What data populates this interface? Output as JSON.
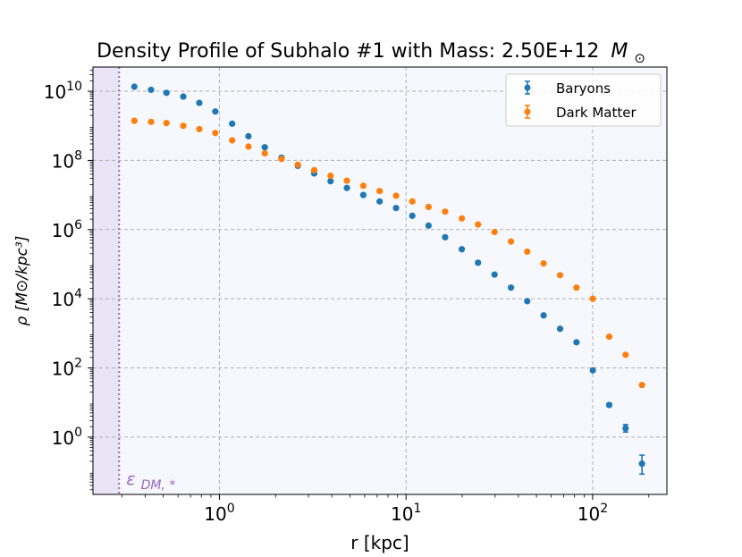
{
  "chart_data": {
    "type": "scatter",
    "title": "Density Profile of Subhalo #1 with Mass: 2.50E+12",
    "title_unit": "M",
    "title_unit_sub": "⊙",
    "xlabel": "r [kpc]",
    "ylabel": "ρ [M⊙/kpc³]",
    "xscale": "log",
    "yscale": "log",
    "xlim": [
      0.21,
      250
    ],
    "ylim": [
      0.022,
      50000000000.0
    ],
    "x_ticks": [
      {
        "value": 1,
        "base": "10",
        "exp": "0"
      },
      {
        "value": 10,
        "base": "10",
        "exp": "1"
      },
      {
        "value": 100,
        "base": "10",
        "exp": "2"
      }
    ],
    "y_ticks": [
      {
        "value": 1,
        "base": "10",
        "exp": "0"
      },
      {
        "value": 100,
        "base": "10",
        "exp": "2"
      },
      {
        "value": 10000,
        "base": "10",
        "exp": "4"
      },
      {
        "value": 1000000,
        "base": "10",
        "exp": "6"
      },
      {
        "value": 100000000,
        "base": "10",
        "exp": "8"
      },
      {
        "value": 10000000000,
        "base": "10",
        "exp": "10"
      }
    ],
    "grid": true,
    "legend_position": "top-right",
    "softening": {
      "x": 0.29,
      "label": "ε",
      "label_sub": "DM, *",
      "color": "#9467bd"
    },
    "series": [
      {
        "name": "Baryons",
        "color": "#1f77b4",
        "points": [
          {
            "x": 0.35,
            "y": 13500000000.0
          },
          {
            "x": 0.43,
            "y": 11000000000.0
          },
          {
            "x": 0.52,
            "y": 9000000000.0
          },
          {
            "x": 0.64,
            "y": 7000000000.0
          },
          {
            "x": 0.78,
            "y": 4600000000.0
          },
          {
            "x": 0.95,
            "y": 2600000000.0
          },
          {
            "x": 1.17,
            "y": 1150000000.0
          },
          {
            "x": 1.43,
            "y": 500000000.0
          },
          {
            "x": 1.75,
            "y": 240000000.0
          },
          {
            "x": 2.15,
            "y": 120000000.0
          },
          {
            "x": 2.63,
            "y": 70000000.0
          },
          {
            "x": 3.22,
            "y": 42000000.0
          },
          {
            "x": 3.94,
            "y": 25000000.0
          },
          {
            "x": 4.82,
            "y": 16000000.0
          },
          {
            "x": 5.9,
            "y": 10000000.0
          },
          {
            "x": 7.22,
            "y": 6500000.0
          },
          {
            "x": 8.84,
            "y": 4200000.0
          },
          {
            "x": 10.8,
            "y": 2500000.0
          },
          {
            "x": 13.2,
            "y": 1300000.0
          },
          {
            "x": 16.2,
            "y": 600000.0
          },
          {
            "x": 19.9,
            "y": 270000.0
          },
          {
            "x": 24.3,
            "y": 110000.0
          },
          {
            "x": 29.8,
            "y": 50000.0
          },
          {
            "x": 36.5,
            "y": 21000.0
          },
          {
            "x": 44.6,
            "y": 8500.0
          },
          {
            "x": 54.6,
            "y": 3300.0
          },
          {
            "x": 66.9,
            "y": 1350.0
          },
          {
            "x": 81.9,
            "y": 550
          },
          {
            "x": 100.2,
            "y": 85
          },
          {
            "x": 122.7,
            "y": 8.5,
            "err": [
              7.6,
              9.5
            ]
          },
          {
            "x": 150.2,
            "y": 1.8,
            "err": [
              1.4,
              2.3
            ]
          },
          {
            "x": 183.8,
            "y": 0.17,
            "err": [
              0.085,
              0.3
            ]
          }
        ]
      },
      {
        "name": "Dark Matter",
        "color": "#ff7f0e",
        "points": [
          {
            "x": 0.35,
            "y": 1400000000.0
          },
          {
            "x": 0.43,
            "y": 1300000000.0
          },
          {
            "x": 0.52,
            "y": 1200000000.0
          },
          {
            "x": 0.64,
            "y": 1000000000.0
          },
          {
            "x": 0.78,
            "y": 800000000.0
          },
          {
            "x": 0.95,
            "y": 620000000.0
          },
          {
            "x": 1.17,
            "y": 380000000.0
          },
          {
            "x": 1.43,
            "y": 250000000.0
          },
          {
            "x": 1.75,
            "y": 160000000.0
          },
          {
            "x": 2.15,
            "y": 110000000.0
          },
          {
            "x": 2.63,
            "y": 75000000.0
          },
          {
            "x": 3.22,
            "y": 52000000.0
          },
          {
            "x": 3.94,
            "y": 36000000.0
          },
          {
            "x": 4.82,
            "y": 26000000.0
          },
          {
            "x": 5.9,
            "y": 18500000.0
          },
          {
            "x": 7.22,
            "y": 13000000.0
          },
          {
            "x": 8.84,
            "y": 9500000.0
          },
          {
            "x": 10.8,
            "y": 6500000.0
          },
          {
            "x": 13.2,
            "y": 4500000.0
          },
          {
            "x": 16.2,
            "y": 3300000.0
          },
          {
            "x": 19.9,
            "y": 2100000.0
          },
          {
            "x": 24.3,
            "y": 1400000.0
          },
          {
            "x": 29.8,
            "y": 850000.0
          },
          {
            "x": 36.5,
            "y": 450000.0
          },
          {
            "x": 44.6,
            "y": 230000.0
          },
          {
            "x": 54.6,
            "y": 105000.0
          },
          {
            "x": 66.9,
            "y": 48000.0
          },
          {
            "x": 81.9,
            "y": 21000.0
          },
          {
            "x": 100.2,
            "y": 10000.0
          },
          {
            "x": 122.7,
            "y": 800
          },
          {
            "x": 150.2,
            "y": 240
          },
          {
            "x": 183.8,
            "y": 32
          }
        ]
      }
    ]
  }
}
